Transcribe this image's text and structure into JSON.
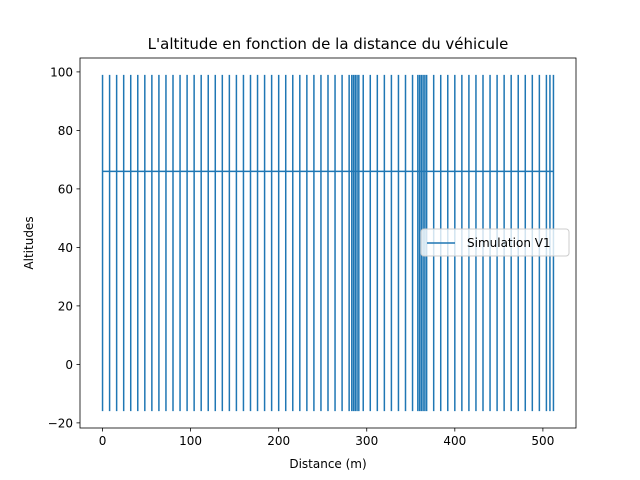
{
  "chart_data": {
    "type": "line",
    "title": "L'altitude en fonction de la distance du véhicule",
    "xlabel": "Distance (m)",
    "ylabel": "Altitudes",
    "xlim": [
      -25.6,
      537.6
    ],
    "ylim": [
      -21.75,
      104.75
    ],
    "xticks": [
      0,
      100,
      200,
      300,
      400,
      500
    ],
    "yticks": [
      -20,
      0,
      20,
      40,
      60,
      80,
      100
    ],
    "grid": false,
    "legend_position": "center right",
    "series": [
      {
        "name": "Simulation V1",
        "color": "#1f77b4",
        "baseline": 66,
        "min": -16,
        "max": 99,
        "x": [
          0,
          0,
          512
        ],
        "y": [
          99,
          -16,
          66
        ],
        "spike_positions": [
          0,
          8,
          16,
          24,
          32,
          40,
          48,
          56,
          64,
          72,
          80,
          88,
          96,
          104,
          112,
          120,
          128,
          136,
          144,
          152,
          160,
          168,
          176,
          184,
          192,
          200,
          208,
          216,
          224,
          232,
          240,
          248,
          256,
          264,
          272,
          280,
          283,
          285,
          287,
          289,
          291,
          296,
          304,
          312,
          320,
          328,
          336,
          344,
          352,
          358,
          360,
          362,
          364,
          366,
          368,
          376,
          384,
          392,
          400,
          408,
          416,
          424,
          432,
          440,
          448,
          456,
          464,
          472,
          480,
          488,
          496,
          504,
          508,
          512
        ]
      }
    ]
  }
}
